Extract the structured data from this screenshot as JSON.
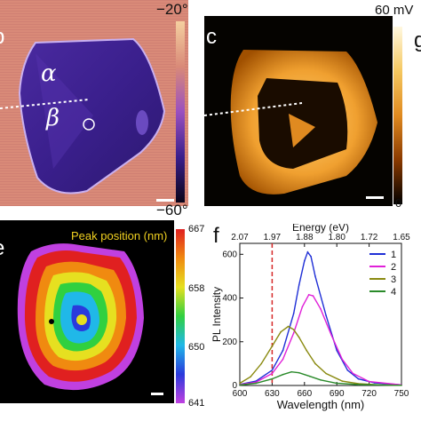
{
  "panels": {
    "b": {
      "letter": "b",
      "alpha_label": "α",
      "beta_label": "β",
      "colorbar_top": "−20°",
      "colorbar_bottom": "−60°"
    },
    "c": {
      "letter": "c",
      "colorbar_top": "60 mV",
      "colorbar_bottom": "0"
    },
    "e": {
      "letter": "e",
      "title": "Peak position (nm)",
      "colorbar_ticks": [
        "667",
        "658",
        "650",
        "641"
      ]
    },
    "f": {
      "letter": "f",
      "g_letter": "g"
    }
  },
  "colors": {
    "panel_b_bg": "#d98a78",
    "panel_b_flake": "#3a1f8c",
    "panel_c_bg": "#050300",
    "panel_c_glow": "#f0a030",
    "dashed_marker": "#d62828"
  },
  "chart_data": {
    "type": "line",
    "title": "",
    "xlabel": "Wavelength (nm)",
    "x2label": "Energy (eV)",
    "ylabel": "PL Intensity",
    "xlim": [
      600,
      750
    ],
    "ylim": [
      0,
      650
    ],
    "x_ticks": [
      "600",
      "630",
      "660",
      "690",
      "720",
      "750"
    ],
    "y_ticks": [
      "0",
      "200",
      "400",
      "600"
    ],
    "x2_ticks": [
      "2.07",
      "1.97",
      "1.88",
      "1.80",
      "1.72",
      "1.65"
    ],
    "marker_x": 630,
    "legend_position": "top-right",
    "series": [
      {
        "name": "1",
        "color": "#1f2fd6",
        "x": [
          600,
          615,
          630,
          640,
          650,
          655,
          660,
          663,
          666,
          670,
          680,
          690,
          700,
          710,
          725,
          750
        ],
        "y": [
          5,
          20,
          70,
          160,
          330,
          460,
          570,
          610,
          590,
          500,
          320,
          160,
          70,
          30,
          12,
          3
        ]
      },
      {
        "name": "2",
        "color": "#e020d8",
        "x": [
          600,
          615,
          630,
          640,
          650,
          658,
          664,
          668,
          675,
          685,
          695,
          705,
          720,
          750
        ],
        "y": [
          4,
          15,
          55,
          120,
          240,
          360,
          415,
          410,
          350,
          230,
          120,
          55,
          18,
          3
        ]
      },
      {
        "name": "3",
        "color": "#8a8a10",
        "x": [
          600,
          610,
          620,
          630,
          638,
          645,
          650,
          655,
          662,
          670,
          680,
          695,
          710,
          730,
          750
        ],
        "y": [
          10,
          40,
          100,
          180,
          245,
          270,
          255,
          220,
          160,
          100,
          55,
          20,
          8,
          3,
          1
        ]
      },
      {
        "name": "4",
        "color": "#2a8a2a",
        "x": [
          600,
          615,
          630,
          640,
          648,
          655,
          665,
          675,
          690,
          710,
          750
        ],
        "y": [
          2,
          10,
          30,
          50,
          62,
          58,
          42,
          25,
          10,
          4,
          1
        ]
      }
    ]
  },
  "chart_data_colorbars": [
    {
      "panel": "b",
      "min": -60,
      "max": -20,
      "unit": "deg"
    },
    {
      "panel": "c",
      "min": 0,
      "max": 60,
      "unit": "mV"
    },
    {
      "panel": "e",
      "min": 641,
      "max": 667,
      "unit": "nm"
    }
  ]
}
